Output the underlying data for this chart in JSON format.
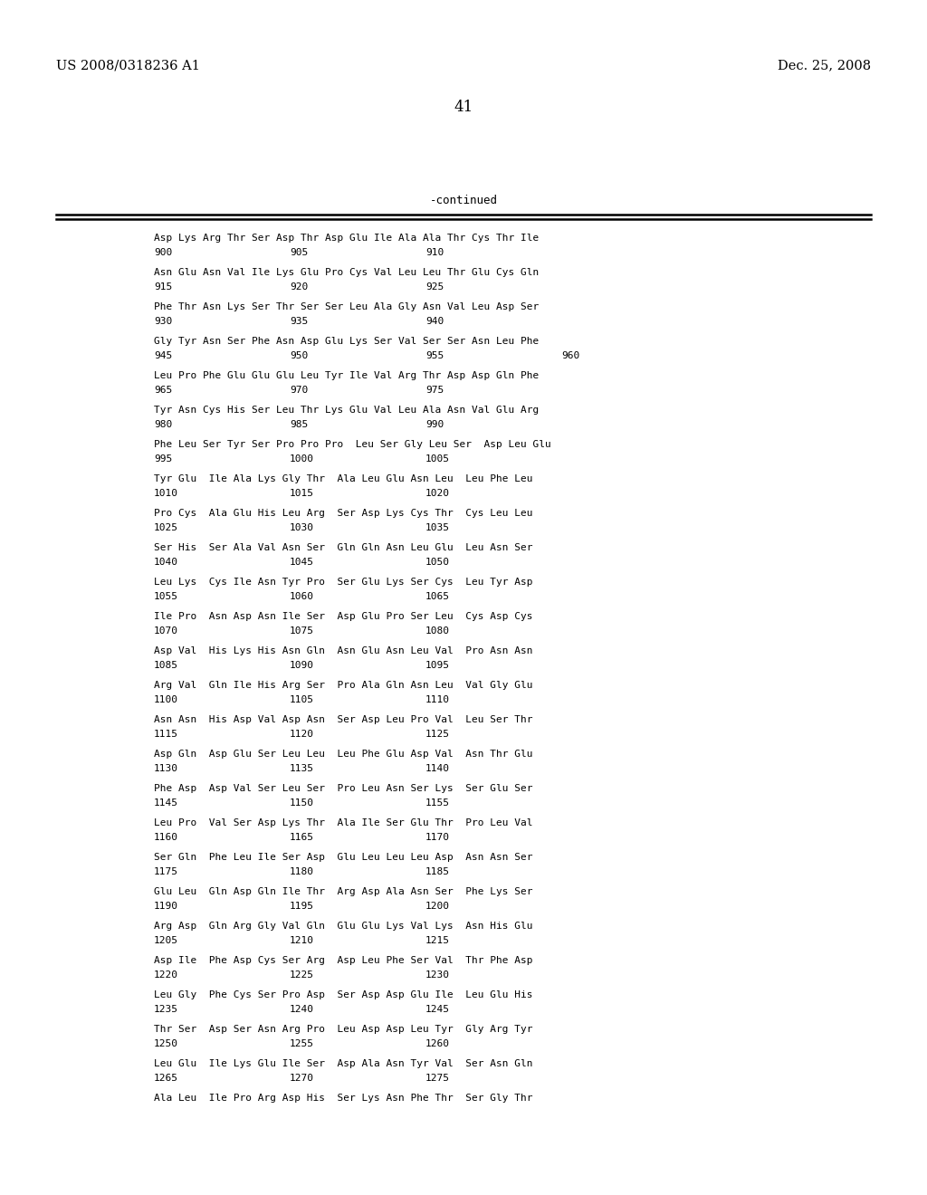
{
  "header_left": "US 2008/0318236 A1",
  "header_right": "Dec. 25, 2008",
  "page_number": "41",
  "continued_label": "-continued",
  "background_color": "#ffffff",
  "text_color": "#000000",
  "sequence_blocks": [
    {
      "aa": "Asp Lys Arg Thr Ser Asp Thr Asp Glu Ile Ala Ala Thr Cys Thr Ile",
      "nums": [
        [
          "900",
          0
        ],
        [
          "905",
          150
        ],
        [
          "910",
          300
        ]
      ]
    },
    {
      "aa": "Asn Glu Asn Val Ile Lys Glu Pro Cys Val Leu Leu Thr Glu Cys Gln",
      "nums": [
        [
          "915",
          0
        ],
        [
          "920",
          150
        ],
        [
          "925",
          300
        ]
      ]
    },
    {
      "aa": "Phe Thr Asn Lys Ser Thr Ser Ser Leu Ala Gly Asn Val Leu Asp Ser",
      "nums": [
        [
          "930",
          0
        ],
        [
          "935",
          150
        ],
        [
          "940",
          300
        ]
      ]
    },
    {
      "aa": "Gly Tyr Asn Ser Phe Asn Asp Glu Lys Ser Val Ser Ser Asn Leu Phe",
      "nums": [
        [
          "945",
          0
        ],
        [
          "950",
          150
        ],
        [
          "955",
          300
        ],
        [
          "960",
          450
        ]
      ]
    },
    {
      "aa": "Leu Pro Phe Glu Glu Glu Leu Tyr Ile Val Arg Thr Asp Asp Gln Phe",
      "nums": [
        [
          "965",
          0
        ],
        [
          "970",
          150
        ],
        [
          "975",
          300
        ]
      ]
    },
    {
      "aa": "Tyr Asn Cys His Ser Leu Thr Lys Glu Val Leu Ala Asn Val Glu Arg",
      "nums": [
        [
          "980",
          0
        ],
        [
          "985",
          150
        ],
        [
          "990",
          300
        ]
      ]
    },
    {
      "aa": "Phe Leu Ser Tyr Ser Pro Pro Pro  Leu Ser Gly Leu Ser  Asp Leu Glu",
      "nums": [
        [
          "995",
          0
        ],
        [
          "1000",
          150
        ],
        [
          "1005",
          300
        ]
      ]
    },
    {
      "aa": "Tyr Glu  Ile Ala Lys Gly Thr  Ala Leu Glu Asn Leu  Leu Phe Leu",
      "nums": [
        [
          "1010",
          0
        ],
        [
          "1015",
          150
        ],
        [
          "1020",
          300
        ]
      ]
    },
    {
      "aa": "Pro Cys  Ala Glu His Leu Arg  Ser Asp Lys Cys Thr  Cys Leu Leu",
      "nums": [
        [
          "1025",
          0
        ],
        [
          "1030",
          150
        ],
        [
          "1035",
          300
        ]
      ]
    },
    {
      "aa": "Ser His  Ser Ala Val Asn Ser  Gln Gln Asn Leu Glu  Leu Asn Ser",
      "nums": [
        [
          "1040",
          0
        ],
        [
          "1045",
          150
        ],
        [
          "1050",
          300
        ]
      ]
    },
    {
      "aa": "Leu Lys  Cys Ile Asn Tyr Pro  Ser Glu Lys Ser Cys  Leu Tyr Asp",
      "nums": [
        [
          "1055",
          0
        ],
        [
          "1060",
          150
        ],
        [
          "1065",
          300
        ]
      ]
    },
    {
      "aa": "Ile Pro  Asn Asp Asn Ile Ser  Asp Glu Pro Ser Leu  Cys Asp Cys",
      "nums": [
        [
          "1070",
          0
        ],
        [
          "1075",
          150
        ],
        [
          "1080",
          300
        ]
      ]
    },
    {
      "aa": "Asp Val  His Lys His Asn Gln  Asn Glu Asn Leu Val  Pro Asn Asn",
      "nums": [
        [
          "1085",
          0
        ],
        [
          "1090",
          150
        ],
        [
          "1095",
          300
        ]
      ]
    },
    {
      "aa": "Arg Val  Gln Ile His Arg Ser  Pro Ala Gln Asn Leu  Val Gly Glu",
      "nums": [
        [
          "1100",
          0
        ],
        [
          "1105",
          150
        ],
        [
          "1110",
          300
        ]
      ]
    },
    {
      "aa": "Asn Asn  His Asp Val Asp Asn  Ser Asp Leu Pro Val  Leu Ser Thr",
      "nums": [
        [
          "1115",
          0
        ],
        [
          "1120",
          150
        ],
        [
          "1125",
          300
        ]
      ]
    },
    {
      "aa": "Asp Gln  Asp Glu Ser Leu Leu  Leu Phe Glu Asp Val  Asn Thr Glu",
      "nums": [
        [
          "1130",
          0
        ],
        [
          "1135",
          150
        ],
        [
          "1140",
          300
        ]
      ]
    },
    {
      "aa": "Phe Asp  Asp Val Ser Leu Ser  Pro Leu Asn Ser Lys  Ser Glu Ser",
      "nums": [
        [
          "1145",
          0
        ],
        [
          "1150",
          150
        ],
        [
          "1155",
          300
        ]
      ]
    },
    {
      "aa": "Leu Pro  Val Ser Asp Lys Thr  Ala Ile Ser Glu Thr  Pro Leu Val",
      "nums": [
        [
          "1160",
          0
        ],
        [
          "1165",
          150
        ],
        [
          "1170",
          300
        ]
      ]
    },
    {
      "aa": "Ser Gln  Phe Leu Ile Ser Asp  Glu Leu Leu Leu Asp  Asn Asn Ser",
      "nums": [
        [
          "1175",
          0
        ],
        [
          "1180",
          150
        ],
        [
          "1185",
          300
        ]
      ]
    },
    {
      "aa": "Glu Leu  Gln Asp Gln Ile Thr  Arg Asp Ala Asn Ser  Phe Lys Ser",
      "nums": [
        [
          "1190",
          0
        ],
        [
          "1195",
          150
        ],
        [
          "1200",
          300
        ]
      ]
    },
    {
      "aa": "Arg Asp  Gln Arg Gly Val Gln  Glu Glu Lys Val Lys  Asn His Glu",
      "nums": [
        [
          "1205",
          0
        ],
        [
          "1210",
          150
        ],
        [
          "1215",
          300
        ]
      ]
    },
    {
      "aa": "Asp Ile  Phe Asp Cys Ser Arg  Asp Leu Phe Ser Val  Thr Phe Asp",
      "nums": [
        [
          "1220",
          0
        ],
        [
          "1225",
          150
        ],
        [
          "1230",
          300
        ]
      ]
    },
    {
      "aa": "Leu Gly  Phe Cys Ser Pro Asp  Ser Asp Asp Glu Ile  Leu Glu His",
      "nums": [
        [
          "1235",
          0
        ],
        [
          "1240",
          150
        ],
        [
          "1245",
          300
        ]
      ]
    },
    {
      "aa": "Thr Ser  Asp Ser Asn Arg Pro  Leu Asp Asp Leu Tyr  Gly Arg Tyr",
      "nums": [
        [
          "1250",
          0
        ],
        [
          "1255",
          150
        ],
        [
          "1260",
          300
        ]
      ]
    },
    {
      "aa": "Leu Glu  Ile Lys Glu Ile Ser  Asp Ala Asn Tyr Val  Ser Asn Gln",
      "nums": [
        [
          "1265",
          0
        ],
        [
          "1270",
          150
        ],
        [
          "1275",
          300
        ]
      ]
    },
    {
      "aa": "Ala Leu  Ile Pro Arg Asp His  Ser Lys Asn Phe Thr  Ser Gly Thr",
      "nums": []
    }
  ]
}
